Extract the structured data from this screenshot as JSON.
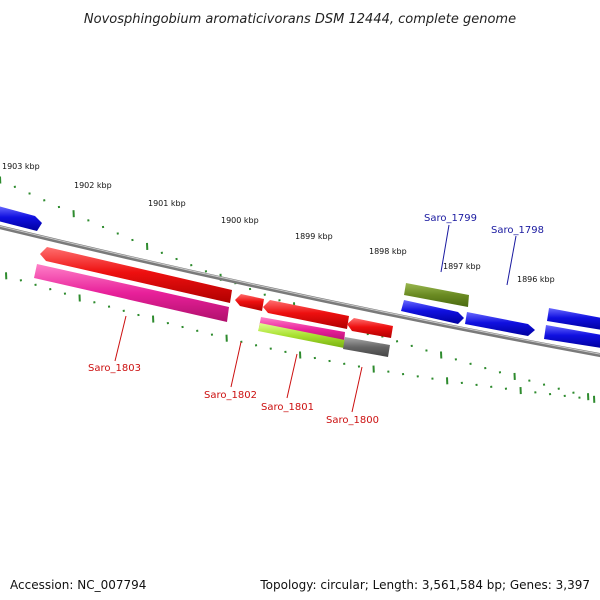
{
  "title": "Novosphingobium aromaticivorans DSM 12444, complete genome",
  "footer": {
    "accession": "Accession: NC_007794",
    "summary": "Topology: circular; Length: 3,561,584 bp; Genes: 3,397"
  },
  "ruler_labels": [
    "1903 kbp",
    "1902 kbp",
    "1901 kbp",
    "1900 kbp",
    "1899 kbp",
    "1898 kbp",
    "1897 kbp",
    "1896 kbp"
  ],
  "colors": {
    "backbone": "#8a8a8a",
    "ticks": "#2e8b2e",
    "forward_gene": "#1010e0",
    "reverse_gene": "#ee1010",
    "pink_feature": "#e8209a",
    "lime_feature": "#a8e030",
    "olive_feature": "#6a8a22",
    "gray_feature": "#666666",
    "forward_label": "#1a1aa0",
    "reverse_label": "#cc1010"
  },
  "genes": [
    {
      "label": "Saro_1803",
      "strand": "reverse"
    },
    {
      "label": "Saro_1802",
      "strand": "reverse"
    },
    {
      "label": "Saro_1801",
      "strand": "reverse"
    },
    {
      "label": "Saro_1800",
      "strand": "reverse"
    },
    {
      "label": "Saro_1799",
      "strand": "forward"
    },
    {
      "label": "Saro_1798",
      "strand": "forward"
    }
  ]
}
